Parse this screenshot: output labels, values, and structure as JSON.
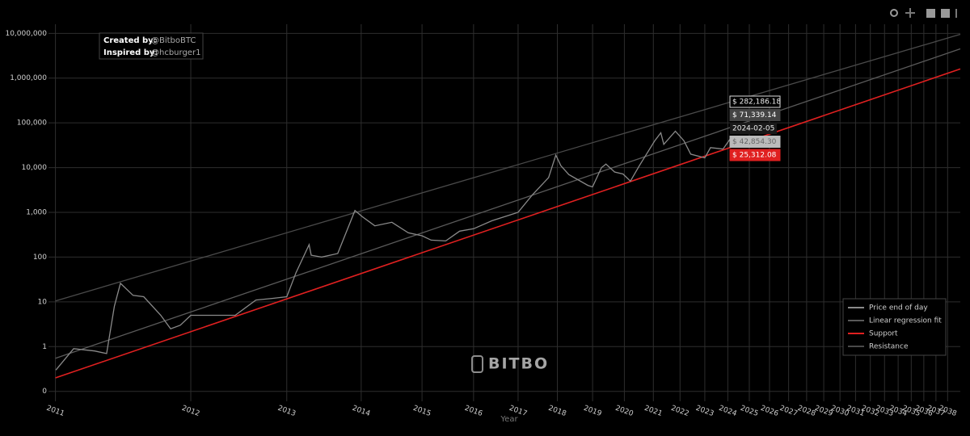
{
  "chart_data": {
    "type": "line",
    "xlabel": "Year",
    "xscale": "log",
    "yscale": "log",
    "grid": true,
    "legend": "bottom-right",
    "xlim": [
      714,
      11000
    ],
    "ylim": [
      0.06,
      16000000
    ],
    "xticks": [
      {
        "value": 729,
        "label": "2011"
      },
      {
        "value": 1094,
        "label": "2012"
      },
      {
        "value": 1459,
        "label": "2013"
      },
      {
        "value": 1824,
        "label": "2014"
      },
      {
        "value": 2189,
        "label": "2015"
      },
      {
        "value": 2555,
        "label": "2016"
      },
      {
        "value": 2920,
        "label": "2017"
      },
      {
        "value": 3285,
        "label": "2018"
      },
      {
        "value": 3651,
        "label": "2019"
      },
      {
        "value": 4016,
        "label": "2020"
      },
      {
        "value": 4381,
        "label": "2021"
      },
      {
        "value": 4746,
        "label": "2022"
      },
      {
        "value": 5112,
        "label": "2023"
      },
      {
        "value": 5477,
        "label": "2024"
      },
      {
        "value": 5842,
        "label": "2025"
      },
      {
        "value": 6207,
        "label": "2026"
      },
      {
        "value": 6573,
        "label": "2027"
      },
      {
        "value": 6938,
        "label": "2028"
      },
      {
        "value": 7303,
        "label": "2029"
      },
      {
        "value": 7668,
        "label": "2030"
      },
      {
        "value": 8034,
        "label": "2031"
      },
      {
        "value": 8399,
        "label": "2032"
      },
      {
        "value": 8764,
        "label": "2033"
      },
      {
        "value": 9129,
        "label": "2034"
      },
      {
        "value": 9495,
        "label": "2035"
      },
      {
        "value": 9860,
        "label": "2036"
      },
      {
        "value": 10225,
        "label": "2037"
      },
      {
        "value": 10590,
        "label": "2038"
      }
    ],
    "yticks": [
      {
        "value": 0.1,
        "label": "0"
      },
      1,
      10,
      100,
      {
        "value": 1000,
        "label": "1,000"
      },
      {
        "value": 10000,
        "label": "10,000"
      },
      {
        "value": 100000,
        "label": "100,000"
      },
      {
        "value": 1000000,
        "label": "1,000,000"
      },
      {
        "value": 10000000,
        "label": "10,000,000"
      }
    ],
    "series": [
      {
        "name": "Price end of day",
        "color": "#8a8a8a",
        "x": [
          730,
          770,
          820,
          850,
          870,
          886,
          920,
          950,
          1000,
          1030,
          1060,
          1094,
          1150,
          1250,
          1330,
          1400,
          1459,
          1500,
          1560,
          1570,
          1620,
          1700,
          1790,
          1830,
          1900,
          2000,
          2100,
          2189,
          2250,
          2350,
          2450,
          2555,
          2700,
          2920,
          3050,
          3200,
          3270,
          3320,
          3400,
          3600,
          3650,
          3750,
          3800,
          3900,
          4000,
          4090,
          4200,
          4400,
          4480,
          4520,
          4680,
          4800,
          4900,
          5112,
          5200,
          5400,
          5511
        ],
        "values": [
          0.3,
          0.9,
          0.8,
          0.7,
          8,
          26,
          14,
          13,
          5,
          2.5,
          3,
          5,
          5,
          5,
          11,
          12,
          13,
          45,
          190,
          110,
          100,
          120,
          1100,
          800,
          500,
          600,
          350,
          300,
          240,
          230,
          380,
          430,
          650,
          1000,
          2500,
          6000,
          19000,
          11000,
          7000,
          4000,
          3700,
          10000,
          12000,
          8000,
          7200,
          5000,
          11000,
          40000,
          60000,
          33000,
          65000,
          40000,
          20000,
          16500,
          28000,
          26000,
          42854
        ]
      },
      {
        "name": "Linear regression fit",
        "color": "#5a5a5a",
        "x": [
          729,
          11000
        ],
        "values": [
          0.55,
          4500000
        ]
      },
      {
        "name": "Support",
        "color": "#e02020",
        "x": [
          729,
          11000
        ],
        "values": [
          0.2,
          1600000
        ]
      },
      {
        "name": "Resistance",
        "color": "#4a4a4a",
        "x": [
          729,
          11000
        ],
        "values": [
          10.5,
          9500000
        ]
      }
    ],
    "tooltip": {
      "date": "2024-02-05",
      "values": [
        282186.18,
        71339.14,
        42854.3,
        25312.08
      ],
      "value_labels": [
        "$ 282,186.18",
        "$ 71,339.14",
        "$ 42,854.30",
        "$ 25,312.08"
      ]
    },
    "annotations": {
      "created_label": "Created by:",
      "created_by": "@BitboBTC",
      "inspired_label": "Inspired by:",
      "inspired_by": "@hcburger1"
    },
    "watermark": "BITBO"
  }
}
